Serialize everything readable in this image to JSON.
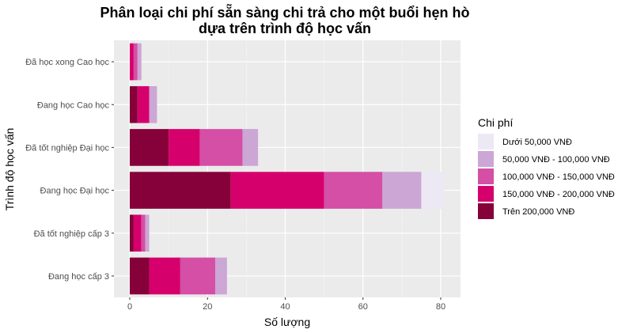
{
  "chart_data": {
    "type": "bar",
    "orientation": "horizontal",
    "stacked": true,
    "title_lines": [
      "Phân loại chi phí sẵn sàng chi trả cho một buổi hẹn hò",
      "dựa trên trình độ học vấn"
    ],
    "xlabel": "Số lượng",
    "ylabel": "Trình độ học vấn",
    "xlim": [
      0,
      85
    ],
    "xticks": [
      0,
      20,
      40,
      60,
      80
    ],
    "xtick_labels": [
      "0",
      "20",
      "40",
      "60",
      "80"
    ],
    "grid": true,
    "legend_position": "right",
    "legend_title": "Chi phí",
    "categories": [
      "Đã học xong Cao học",
      "Đang học Cao học",
      "Đã tốt nghiệp Đại học",
      "Đang học Đại học",
      "Đã tốt nghiệp cấp 3",
      "Đang học cấp 3"
    ],
    "series": [
      {
        "name": "Trên 200,000 VNĐ",
        "color": "#86003a",
        "values": [
          0,
          2,
          10,
          26,
          1,
          5
        ]
      },
      {
        "name": "150,000 VNĐ - 200,000 VNĐ",
        "color": "#d6006c",
        "values": [
          1,
          3,
          8,
          24,
          2,
          8
        ]
      },
      {
        "name": "100,000 VNĐ - 150,000 VNĐ",
        "color": "#d44fa5",
        "values": [
          1,
          0,
          11,
          15,
          1,
          9
        ]
      },
      {
        "name": "50,000 VNĐ - 100,000 VNĐ",
        "color": "#cca6d4",
        "values": [
          1,
          2,
          4,
          10,
          1,
          3
        ]
      },
      {
        "name": "Dưới 50,000 VNĐ",
        "color": "#ece8f4",
        "values": [
          0,
          0,
          0,
          6,
          0,
          0
        ]
      }
    ],
    "legend_order": [
      4,
      3,
      2,
      1,
      0
    ]
  }
}
